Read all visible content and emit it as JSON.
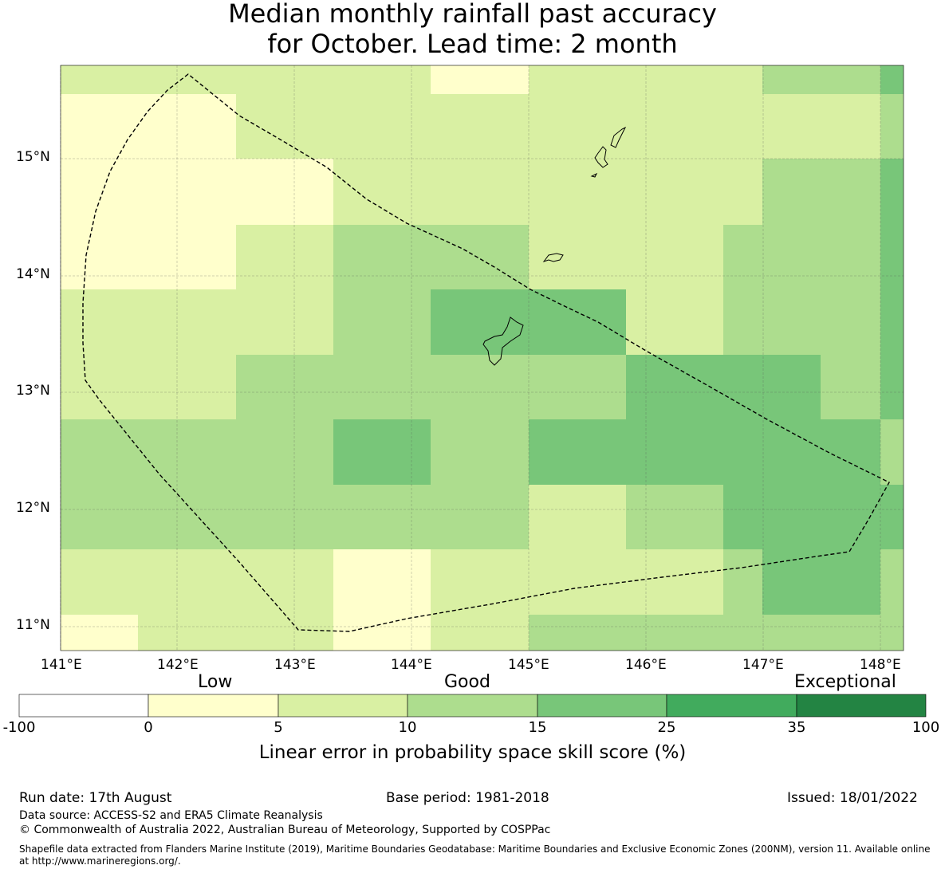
{
  "title_line1": "Median monthly rainfall past accuracy",
  "title_line2": "for October. Lead time: 2 month",
  "map": {
    "lon_labels": [
      "141°E",
      "142°E",
      "143°E",
      "144°E",
      "145°E",
      "146°E",
      "147°E",
      "148°E"
    ],
    "lat_labels": [
      "15°N",
      "14°N",
      "13°N",
      "12°N",
      "11°N"
    ],
    "class_colors": [
      "#ffffcc",
      "#d9f0a3",
      "#addd8e",
      "#78c679"
    ],
    "grid_rows": [
      [
        1,
        1,
        1,
        1,
        0,
        1,
        1,
        1,
        2,
        2,
        3,
        3
      ],
      [
        0,
        0,
        1,
        1,
        1,
        1,
        1,
        1,
        1,
        1,
        2,
        2
      ],
      [
        0,
        0,
        0,
        1,
        1,
        1,
        1,
        1,
        2,
        2,
        3,
        3
      ],
      [
        0,
        0,
        1,
        2,
        2,
        1,
        1,
        2,
        2,
        2,
        3,
        3
      ],
      [
        1,
        1,
        1,
        2,
        3,
        3,
        1,
        2,
        2,
        2,
        3,
        3
      ],
      [
        1,
        1,
        2,
        2,
        2,
        2,
        3,
        3,
        3,
        2,
        3,
        3
      ],
      [
        2,
        2,
        2,
        3,
        2,
        3,
        3,
        3,
        3,
        3,
        2,
        2
      ],
      [
        2,
        2,
        2,
        2,
        2,
        1,
        2,
        3,
        3,
        3,
        3,
        3
      ],
      [
        1,
        1,
        1,
        0,
        1,
        1,
        1,
        2,
        3,
        3,
        2,
        2
      ],
      [
        0,
        1,
        1,
        0,
        1,
        2,
        2,
        2,
        2,
        2,
        2,
        2
      ]
    ],
    "eez_outline": "dashed",
    "island_color": "#000000"
  },
  "legend": {
    "categories": [
      "Low",
      "Good",
      "Exceptional"
    ],
    "ticks": [
      "-100",
      "0",
      "5",
      "10",
      "15",
      "25",
      "35",
      "100"
    ],
    "colors": [
      "#ffffff",
      "#ffffcc",
      "#d9f0a3",
      "#addd8e",
      "#78c679",
      "#41ab5d",
      "#238443"
    ],
    "label": "Linear error in probability space skill score (%)"
  },
  "footer": {
    "run_date": "Run date: 17th August",
    "base_period": "Base period: 1981-2018",
    "issued": "Issued: 18/01/2022",
    "data_source": "Data source: ACCESS-S2 and ERA5 Climate Reanalysis",
    "copyright": "© Commonwealth of Australia 2022, Australian Bureau of Meteorology, Supported by COSPPac",
    "shapefile_line1": "Shapefile data extracted from Flanders Marine Institute (2019), Maritime Boundaries Geodatabase: Maritime Boundaries and Exclusive Economic Zones (200NM), version 11. Available online",
    "shapefile_line2": "at http://www.marineregions.org/."
  }
}
